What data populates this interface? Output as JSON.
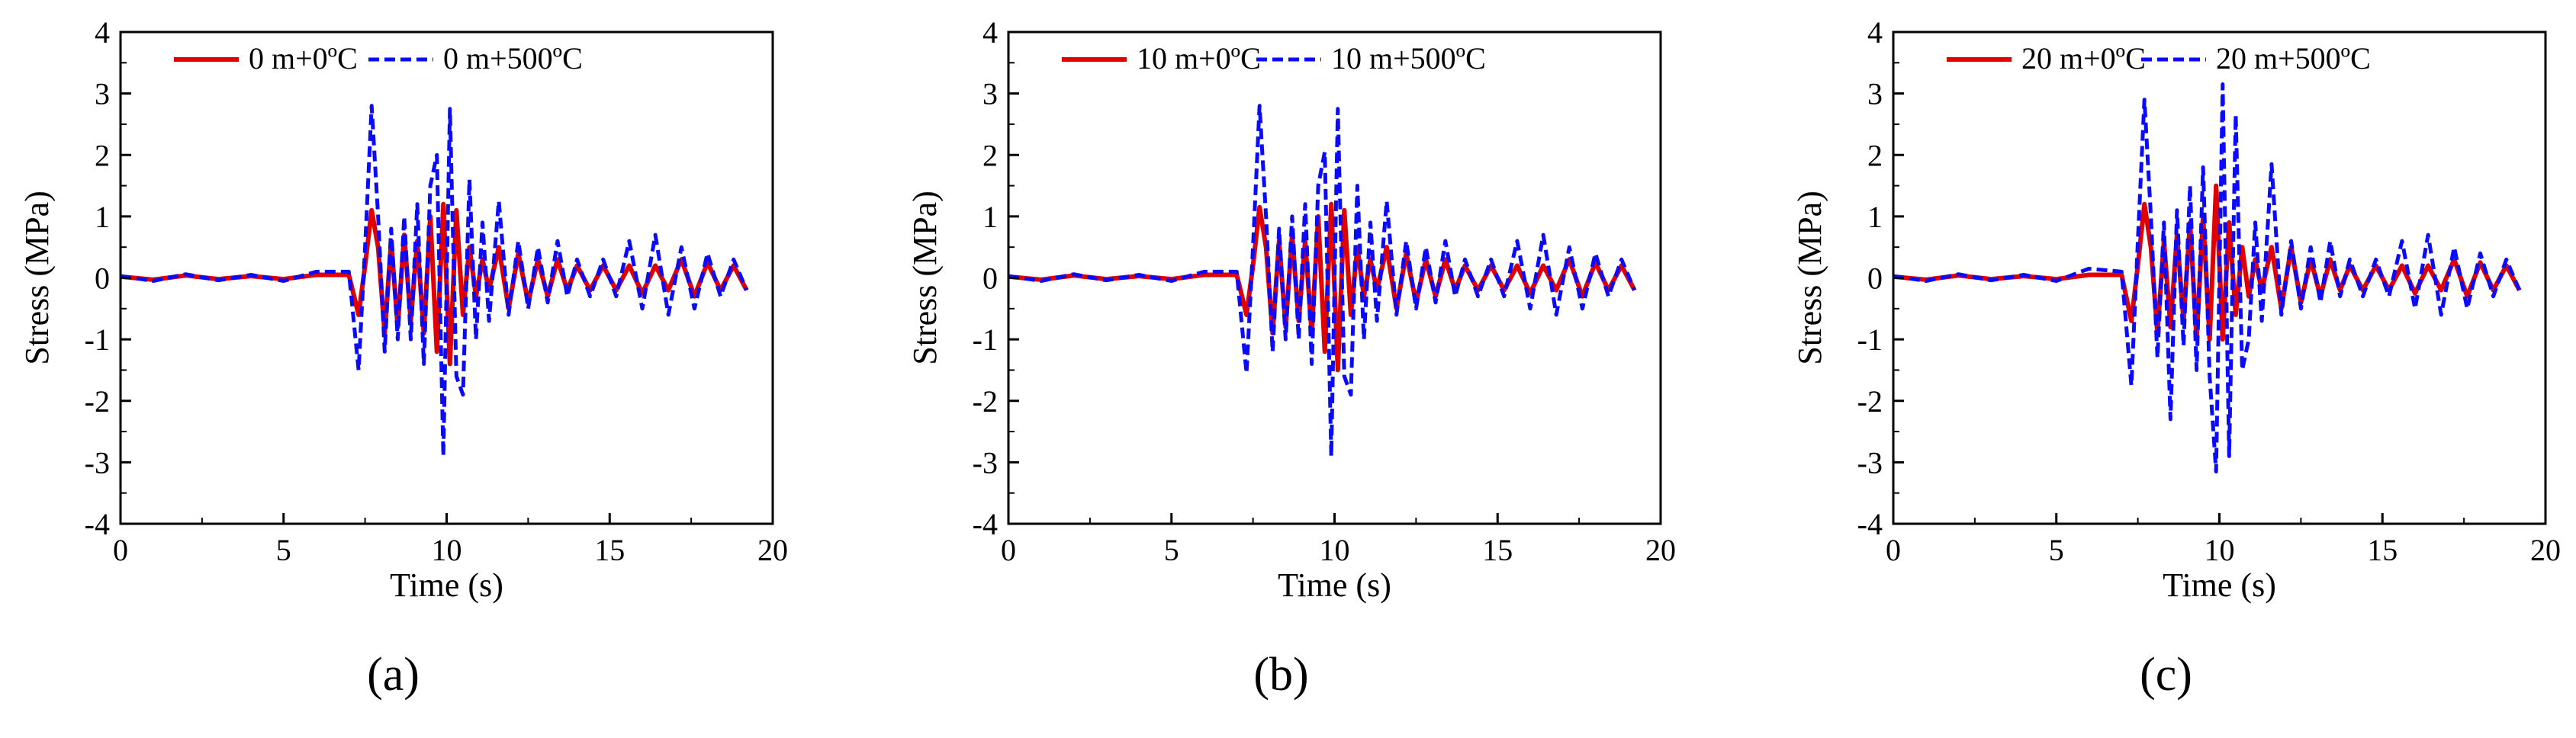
{
  "colors": {
    "series_0C": "#e00000",
    "series_500C": "#0a0aff",
    "axis": "#000000"
  },
  "chart_data": [
    {
      "type": "line",
      "panel_label": "(a)",
      "xlabel": "Time (s)",
      "ylabel": "Stress (MPa)",
      "xlim": [
        0,
        20
      ],
      "ylim": [
        -4,
        4
      ],
      "xticks": [
        "0",
        "5",
        "10",
        "15",
        "20"
      ],
      "yticks": [
        "4",
        "3",
        "2",
        "1",
        "0",
        "-1",
        "-2",
        "-3",
        "-4"
      ],
      "legend_position": "top",
      "series": [
        {
          "name": "0 m+0ºC",
          "style": "solid",
          "x": [
            0,
            1,
            2,
            3,
            4,
            5,
            6,
            7.0,
            7.3,
            7.5,
            7.7,
            7.9,
            8.1,
            8.3,
            8.5,
            8.7,
            8.9,
            9.1,
            9.3,
            9.5,
            9.7,
            9.9,
            10.1,
            10.3,
            10.5,
            10.7,
            10.9,
            11.1,
            11.3,
            11.6,
            11.9,
            12.2,
            12.5,
            12.8,
            13.1,
            13.4,
            13.7,
            14.0,
            14.4,
            14.8,
            15.2,
            15.6,
            16.0,
            16.4,
            16.8,
            17.2,
            17.6,
            18.0,
            18.4,
            18.8,
            19.2
          ],
          "y": [
            0.02,
            -0.03,
            0.04,
            -0.02,
            0.03,
            -0.02,
            0.05,
            0.05,
            -0.6,
            0.2,
            1.1,
            0.5,
            -0.9,
            0.6,
            -0.8,
            0.7,
            -0.7,
            0.6,
            -0.9,
            1.0,
            -1.2,
            1.2,
            -1.4,
            1.1,
            -0.6,
            0.5,
            -0.3,
            0.3,
            -0.2,
            0.5,
            -0.5,
            0.4,
            -0.4,
            0.3,
            -0.3,
            0.3,
            -0.2,
            0.2,
            -0.2,
            0.2,
            -0.2,
            0.2,
            -0.25,
            0.2,
            -0.2,
            0.3,
            -0.3,
            0.25,
            -0.2,
            0.2,
            -0.2
          ]
        },
        {
          "name": "0 m+500ºC",
          "style": "dashed",
          "x": [
            0,
            1,
            2,
            3,
            4,
            5,
            6,
            7.0,
            7.3,
            7.5,
            7.7,
            7.9,
            8.1,
            8.3,
            8.5,
            8.7,
            8.9,
            9.1,
            9.3,
            9.5,
            9.7,
            9.9,
            10.1,
            10.3,
            10.5,
            10.7,
            10.9,
            11.1,
            11.3,
            11.6,
            11.9,
            12.2,
            12.5,
            12.8,
            13.1,
            13.4,
            13.7,
            14.0,
            14.4,
            14.8,
            15.2,
            15.6,
            16.0,
            16.4,
            16.8,
            17.2,
            17.6,
            18.0,
            18.4,
            18.8,
            19.2
          ],
          "y": [
            0.03,
            -0.05,
            0.06,
            -0.04,
            0.05,
            -0.05,
            0.1,
            0.1,
            -1.5,
            0.5,
            2.8,
            1.0,
            -1.2,
            0.8,
            -1.0,
            1.0,
            -1.0,
            1.2,
            -1.4,
            1.5,
            2.0,
            -2.9,
            2.75,
            -1.6,
            -1.9,
            1.6,
            -1.0,
            0.9,
            -0.7,
            1.25,
            -0.6,
            0.6,
            -0.5,
            0.5,
            -0.4,
            0.6,
            -0.3,
            0.3,
            -0.3,
            0.3,
            -0.3,
            0.6,
            -0.5,
            0.7,
            -0.6,
            0.5,
            -0.5,
            0.4,
            -0.3,
            0.3,
            -0.2
          ]
        }
      ]
    },
    {
      "type": "line",
      "panel_label": "(b)",
      "xlabel": "Time (s)",
      "ylabel": "Stress (MPa)",
      "xlim": [
        0,
        20
      ],
      "ylim": [
        -4,
        4
      ],
      "xticks": [
        "0",
        "5",
        "10",
        "15",
        "20"
      ],
      "yticks": [
        "4",
        "3",
        "2",
        "1",
        "0",
        "-1",
        "-2",
        "-3",
        "-4"
      ],
      "legend_position": "top",
      "series": [
        {
          "name": "10 m+0ºC",
          "style": "solid",
          "x": [
            0,
            1,
            2,
            3,
            4,
            5,
            6,
            7.0,
            7.3,
            7.5,
            7.7,
            7.9,
            8.1,
            8.3,
            8.5,
            8.7,
            8.9,
            9.1,
            9.3,
            9.5,
            9.7,
            9.9,
            10.1,
            10.3,
            10.5,
            10.7,
            10.9,
            11.1,
            11.3,
            11.6,
            11.9,
            12.2,
            12.5,
            12.8,
            13.1,
            13.4,
            13.7,
            14.0,
            14.4,
            14.8,
            15.2,
            15.6,
            16.0,
            16.4,
            16.8,
            17.2,
            17.6,
            18.0,
            18.4,
            18.8,
            19.2
          ],
          "y": [
            0.02,
            -0.03,
            0.04,
            -0.02,
            0.03,
            -0.02,
            0.05,
            0.05,
            -0.6,
            0.2,
            1.15,
            0.5,
            -0.9,
            0.6,
            -0.8,
            0.7,
            -0.7,
            0.6,
            -0.9,
            1.0,
            -1.2,
            1.2,
            -1.5,
            1.1,
            -0.6,
            0.5,
            -0.3,
            0.3,
            -0.2,
            0.5,
            -0.5,
            0.4,
            -0.4,
            0.3,
            -0.3,
            0.3,
            -0.2,
            0.2,
            -0.2,
            0.2,
            -0.2,
            0.2,
            -0.25,
            0.2,
            -0.2,
            0.3,
            -0.3,
            0.25,
            -0.2,
            0.2,
            -0.2
          ]
        },
        {
          "name": "10 m+500ºC",
          "style": "dashed",
          "x": [
            0,
            1,
            2,
            3,
            4,
            5,
            6,
            7.0,
            7.3,
            7.5,
            7.7,
            7.9,
            8.1,
            8.3,
            8.5,
            8.7,
            8.9,
            9.1,
            9.3,
            9.5,
            9.7,
            9.9,
            10.1,
            10.3,
            10.5,
            10.7,
            10.9,
            11.1,
            11.3,
            11.6,
            11.9,
            12.2,
            12.5,
            12.8,
            13.1,
            13.4,
            13.7,
            14.0,
            14.4,
            14.8,
            15.2,
            15.6,
            16.0,
            16.4,
            16.8,
            17.2,
            17.6,
            18.0,
            18.4,
            18.8,
            19.2
          ],
          "y": [
            0.03,
            -0.05,
            0.06,
            -0.04,
            0.05,
            -0.05,
            0.1,
            0.1,
            -1.55,
            0.5,
            2.8,
            1.0,
            -1.2,
            0.8,
            -1.0,
            1.0,
            -1.0,
            1.2,
            -1.4,
            1.5,
            2.05,
            -2.9,
            2.75,
            -1.6,
            -1.9,
            1.5,
            -1.0,
            0.9,
            -0.7,
            1.25,
            -0.6,
            0.6,
            -0.5,
            0.5,
            -0.4,
            0.6,
            -0.3,
            0.3,
            -0.3,
            0.3,
            -0.3,
            0.6,
            -0.5,
            0.7,
            -0.6,
            0.5,
            -0.5,
            0.4,
            -0.3,
            0.3,
            -0.2
          ]
        }
      ]
    },
    {
      "type": "line",
      "panel_label": "(c)",
      "xlabel": "Time (s)",
      "ylabel": "Stress (MPa)",
      "xlim": [
        0,
        20
      ],
      "ylim": [
        -4,
        4
      ],
      "xticks": [
        "0",
        "5",
        "10",
        "15",
        "20"
      ],
      "yticks": [
        "4",
        "3",
        "2",
        "1",
        "0",
        "-1",
        "-2",
        "-3",
        "-4"
      ],
      "legend_position": "top",
      "series": [
        {
          "name": "20 m+0ºC",
          "style": "solid",
          "x": [
            0,
            1,
            2,
            3,
            4,
            5,
            6,
            7.0,
            7.3,
            7.5,
            7.7,
            7.9,
            8.1,
            8.3,
            8.5,
            8.7,
            8.9,
            9.1,
            9.3,
            9.5,
            9.7,
            9.9,
            10.1,
            10.3,
            10.5,
            10.7,
            10.9,
            11.1,
            11.3,
            11.6,
            11.9,
            12.2,
            12.5,
            12.8,
            13.1,
            13.4,
            13.7,
            14.0,
            14.4,
            14.8,
            15.2,
            15.6,
            16.0,
            16.4,
            16.8,
            17.2,
            17.6,
            18.0,
            18.4,
            18.8,
            19.2
          ],
          "y": [
            0.02,
            -0.03,
            0.04,
            -0.02,
            0.03,
            -0.02,
            0.05,
            0.05,
            -0.7,
            0.2,
            1.2,
            0.5,
            -0.9,
            0.6,
            -0.8,
            0.7,
            -0.7,
            0.9,
            -1.0,
            1.0,
            -1.0,
            1.5,
            -1.0,
            0.9,
            -0.6,
            0.5,
            -0.3,
            0.3,
            -0.2,
            0.5,
            -0.5,
            0.5,
            -0.4,
            0.3,
            -0.3,
            0.3,
            -0.2,
            0.2,
            -0.2,
            0.2,
            -0.2,
            0.2,
            -0.25,
            0.2,
            -0.2,
            0.3,
            -0.3,
            0.25,
            -0.2,
            0.2,
            -0.2
          ]
        },
        {
          "name": "20 m+500ºC",
          "style": "dashed",
          "x": [
            0,
            1,
            2,
            3,
            4,
            5,
            6,
            7.0,
            7.3,
            7.5,
            7.7,
            7.9,
            8.1,
            8.3,
            8.5,
            8.7,
            8.9,
            9.1,
            9.3,
            9.5,
            9.7,
            9.9,
            10.1,
            10.3,
            10.5,
            10.7,
            10.9,
            11.1,
            11.3,
            11.6,
            11.9,
            12.2,
            12.5,
            12.8,
            13.1,
            13.4,
            13.7,
            14.0,
            14.4,
            14.8,
            15.2,
            15.6,
            16.0,
            16.4,
            16.8,
            17.2,
            17.6,
            18.0,
            18.4,
            18.8,
            19.2
          ],
          "y": [
            0.03,
            -0.05,
            0.06,
            -0.04,
            0.05,
            -0.05,
            0.15,
            0.1,
            -1.75,
            0.6,
            2.9,
            1.0,
            -1.3,
            0.9,
            -2.3,
            1.1,
            -1.1,
            1.5,
            -1.5,
            1.8,
            -1.6,
            -3.15,
            3.15,
            -2.9,
            2.65,
            -1.5,
            -1.0,
            0.9,
            -0.7,
            1.85,
            -0.6,
            0.6,
            -0.5,
            0.5,
            -0.4,
            0.6,
            -0.3,
            0.3,
            -0.3,
            0.3,
            -0.3,
            0.6,
            -0.5,
            0.7,
            -0.6,
            0.5,
            -0.5,
            0.4,
            -0.3,
            0.3,
            -0.2
          ]
        }
      ]
    }
  ]
}
